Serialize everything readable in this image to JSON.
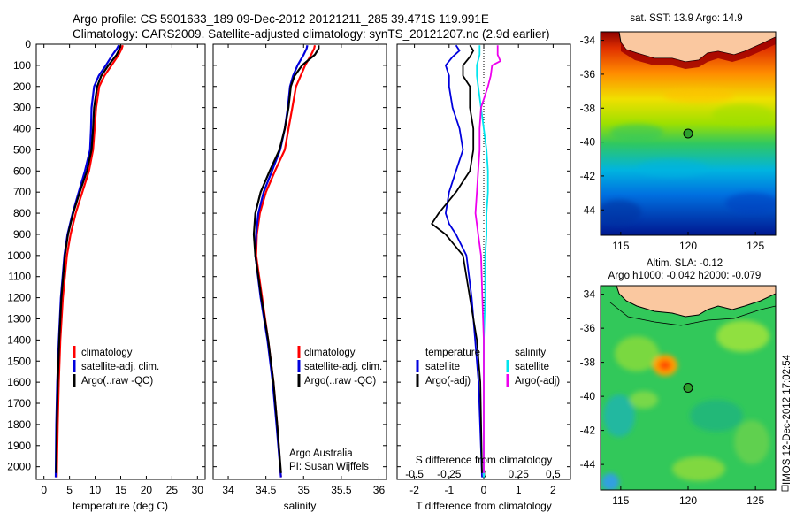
{
  "figure": {
    "title_line1": "Argo profile: CS 5901633_189 09-Dec-2012 20121211_285 39.471S 119.991E",
    "title_line2": "Climatology: CARS2009. Satellite-adjusted climatology: synTS_20121207.nc (2.9d earlier)",
    "side_label": "IMOS 12-Dec-2012 17:02:54",
    "argo_credit_line1": "Argo Australia",
    "argo_credit_line2": "PI: Susan Wijffels",
    "colors": {
      "climatology": "#ff0000",
      "satellite": "#0000dd",
      "argo": "#000000",
      "sal_satellite": "#00e5ee",
      "sal_argo": "#ee00ee"
    }
  },
  "chart_data": [
    {
      "type": "line",
      "panel": "temperature",
      "xlabel": "temperature (deg C)",
      "ylabel": "",
      "xlim": [
        -1.5,
        31.5
      ],
      "ylim": [
        2060,
        0
      ],
      "xticks": [
        0,
        5,
        10,
        15,
        20,
        25,
        30
      ],
      "yticks": [
        0,
        100,
        200,
        300,
        400,
        500,
        600,
        700,
        800,
        900,
        1000,
        1100,
        1200,
        1300,
        1400,
        1500,
        1600,
        1700,
        1800,
        1900,
        2000
      ],
      "legend": {
        "position": "lower-center",
        "entries": [
          "climatology",
          "satellite-adj. clim.",
          "Argo(..raw -QC)"
        ]
      },
      "series": [
        {
          "name": "climatology",
          "color": "#ff0000",
          "depth": [
            5,
            20,
            50,
            100,
            150,
            200,
            300,
            400,
            500,
            600,
            700,
            800,
            900,
            1000,
            1200,
            1400,
            1600,
            1800,
            2050
          ],
          "values": [
            15.4,
            15.2,
            14.6,
            13.2,
            11.8,
            10.8,
            10.2,
            9.9,
            9.6,
            8.8,
            7.5,
            6.2,
            5.2,
            4.5,
            3.7,
            3.2,
            2.9,
            2.7,
            2.5
          ]
        },
        {
          "name": "satellite-adj. clim.",
          "color": "#0000dd",
          "depth": [
            5,
            20,
            50,
            100,
            150,
            200,
            300,
            400,
            500,
            600,
            700,
            800,
            900,
            1000,
            1200,
            1400,
            1600,
            1800,
            2050
          ],
          "values": [
            14.6,
            14.3,
            13.4,
            12.1,
            10.7,
            9.8,
            9.3,
            9.2,
            9.0,
            8.0,
            6.8,
            5.6,
            4.6,
            4.0,
            3.3,
            2.9,
            2.6,
            2.4,
            2.3
          ]
        },
        {
          "name": "Argo(..raw -QC)",
          "color": "#000000",
          "depth": [
            5,
            20,
            50,
            100,
            150,
            200,
            300,
            400,
            500,
            600,
            700,
            800,
            900,
            1000,
            1200,
            1400,
            1600,
            1800,
            2030
          ],
          "values": [
            15.0,
            14.8,
            14.2,
            12.6,
            11.2,
            10.4,
            9.8,
            9.6,
            9.3,
            8.4,
            7.0,
            5.7,
            4.7,
            4.1,
            3.4,
            3.0,
            2.7,
            2.5,
            2.4
          ]
        }
      ]
    },
    {
      "type": "line",
      "panel": "salinity",
      "xlabel": "salinity",
      "ylabel": "",
      "xlim": [
        33.8,
        36.1
      ],
      "ylim": [
        2060,
        0
      ],
      "xticks": [
        34,
        34.5,
        35,
        35.5,
        36
      ],
      "legend": {
        "position": "lower-center",
        "entries": [
          "climatology",
          "satellite-adj. clim.",
          "Argo(..raw -QC)"
        ]
      },
      "series": [
        {
          "name": "climatology",
          "color": "#ff0000",
          "depth": [
            5,
            20,
            50,
            100,
            150,
            200,
            300,
            400,
            500,
            600,
            700,
            800,
            900,
            1000,
            1200,
            1400,
            1600,
            1800,
            2050
          ],
          "values": [
            35.15,
            35.14,
            35.1,
            35.02,
            34.96,
            34.9,
            34.85,
            34.8,
            34.75,
            34.62,
            34.5,
            34.42,
            34.38,
            34.37,
            34.45,
            34.53,
            34.6,
            34.65,
            34.7
          ]
        },
        {
          "name": "satellite-adj. clim.",
          "color": "#0000dd",
          "depth": [
            5,
            20,
            50,
            100,
            150,
            200,
            300,
            400,
            500,
            600,
            700,
            800,
            900,
            1000,
            1200,
            1400,
            1600,
            1800,
            2050
          ],
          "values": [
            35.05,
            35.04,
            35.0,
            34.92,
            34.86,
            34.82,
            34.79,
            34.75,
            34.69,
            34.58,
            34.47,
            34.4,
            34.37,
            34.36,
            34.43,
            34.52,
            34.59,
            34.64,
            34.7
          ]
        },
        {
          "name": "Argo(..raw -QC)",
          "color": "#000000",
          "depth": [
            5,
            20,
            50,
            100,
            150,
            200,
            300,
            400,
            500,
            600,
            700,
            800,
            900,
            1000,
            1200,
            1400,
            1600,
            1800,
            2030
          ],
          "values": [
            35.2,
            35.2,
            35.15,
            34.98,
            34.88,
            34.83,
            34.8,
            34.75,
            34.68,
            34.55,
            34.43,
            34.36,
            34.34,
            34.36,
            34.44,
            34.53,
            34.6,
            34.65,
            34.7
          ]
        }
      ]
    },
    {
      "type": "line",
      "panel": "difference",
      "xlabel": "T difference from climatology",
      "xlabel2": "S difference from climatology",
      "xlim": [
        -2.5,
        2.5
      ],
      "x2lim": [
        -0.625,
        0.625
      ],
      "ylim": [
        2060,
        0
      ],
      "xticks": [
        -2,
        -1,
        0,
        1,
        2
      ],
      "x2ticks": [
        -0.5,
        -0.25,
        0,
        0.25,
        0.5
      ],
      "x2ticklabels": [
        "-0.5",
        "-0.25",
        "0",
        "0.25",
        "0.5"
      ],
      "zero_line": "dotted",
      "legend": {
        "position": "lower-center",
        "groups": [
          {
            "header": "temperature",
            "entries": [
              "satellite",
              "Argo(-adj)"
            ]
          },
          {
            "header": "salinity",
            "entries": [
              "satellite",
              "Argo(-adj)"
            ]
          }
        ]
      },
      "series": [
        {
          "name": "satellite",
          "group": "temperature",
          "color": "#0000dd",
          "depth": [
            5,
            30,
            60,
            100,
            150,
            200,
            300,
            400,
            500,
            600,
            700,
            800,
            850,
            900,
            1000,
            1200,
            1400,
            1600,
            2050
          ],
          "values": [
            -0.8,
            -0.7,
            -0.9,
            -1.1,
            -1.0,
            -1.0,
            -0.9,
            -0.7,
            -0.6,
            -0.8,
            -1.0,
            -1.1,
            -1.0,
            -0.8,
            -0.5,
            -0.35,
            -0.25,
            -0.15,
            -0.05
          ]
        },
        {
          "name": "Argo(-adj)",
          "group": "temperature",
          "color": "#000000",
          "depth": [
            5,
            30,
            60,
            100,
            150,
            200,
            300,
            400,
            500,
            600,
            700,
            800,
            850,
            900,
            1000,
            1200,
            1400,
            1600,
            2030
          ],
          "values": [
            -0.4,
            -0.3,
            -0.4,
            -0.6,
            -0.6,
            -0.4,
            -0.4,
            -0.3,
            -0.3,
            -0.4,
            -0.8,
            -1.3,
            -1.5,
            -1.1,
            -0.6,
            -0.4,
            -0.2,
            -0.1,
            -0.05
          ]
        },
        {
          "name": "satellite",
          "group": "salinity",
          "color": "#00e5ee",
          "depth": [
            5,
            50,
            100,
            150,
            200,
            300,
            400,
            500,
            600,
            700,
            800,
            900,
            1000,
            1200,
            1400,
            1600,
            2050
          ],
          "values": [
            -0.03,
            -0.03,
            -0.05,
            -0.05,
            -0.04,
            -0.02,
            0.0,
            0.02,
            0.03,
            0.03,
            0.02,
            0.02,
            0.01,
            0.01,
            0.0,
            0.0,
            0.0
          ]
        },
        {
          "name": "Argo(-adj)",
          "group": "salinity",
          "color": "#ee00ee",
          "depth": [
            5,
            50,
            80,
            100,
            150,
            200,
            300,
            400,
            500,
            600,
            700,
            800,
            900,
            1000,
            1200,
            1400,
            1600,
            2030
          ],
          "values": [
            0.1,
            0.1,
            0.12,
            0.06,
            0.05,
            0.03,
            -0.02,
            -0.03,
            -0.03,
            -0.04,
            -0.05,
            -0.06,
            -0.04,
            -0.02,
            -0.01,
            0.0,
            0.0,
            0.0
          ]
        }
      ]
    },
    {
      "type": "heatmap",
      "panel": "sst_map",
      "title": "sat. SST: 13.9  Argo: 14.9",
      "xlim": [
        113.5,
        126.5
      ],
      "ylim": [
        -45.5,
        -33.5
      ],
      "xticks": [
        115,
        120,
        125
      ],
      "yticks": [
        -34,
        -36,
        -38,
        -40,
        -42,
        -44
      ],
      "float_position": {
        "lon": 120.0,
        "lat": -39.5
      }
    },
    {
      "type": "heatmap",
      "panel": "sla_map",
      "title_line1": "Altim. SLA: -0.12",
      "title_line2": "Argo h1000: -0.042  h2000: -0.079",
      "xlim": [
        113.5,
        126.5
      ],
      "ylim": [
        -45.5,
        -33.5
      ],
      "xticks": [
        115,
        120,
        125
      ],
      "yticks": [
        -34,
        -36,
        -38,
        -40,
        -42,
        -44
      ],
      "float_position": {
        "lon": 120.0,
        "lat": -39.5
      }
    }
  ]
}
